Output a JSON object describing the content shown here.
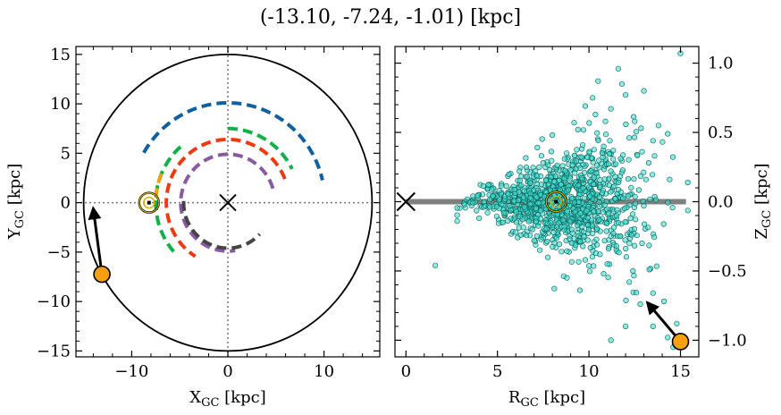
{
  "title": "(-13.10, -7.24, -1.01) [kpc]",
  "chart_data": [
    {
      "type": "line",
      "name": "galactic-plane-view",
      "xlabel": "X",
      "xlabel_sub": "GC",
      "xlabel_unit": " [kpc]",
      "ylabel": "Y",
      "ylabel_sub": "GC",
      "ylabel_unit": " [kpc]",
      "xlim": [
        -15.8,
        15.8
      ],
      "ylim": [
        -15.6,
        15.8
      ],
      "xticks": [
        -10,
        0,
        10
      ],
      "xtick_labels": [
        "−10",
        "0",
        "10"
      ],
      "yticks": [
        -15,
        -10,
        -5,
        0,
        5,
        10,
        15
      ],
      "ytick_labels": [
        "−15",
        "−10",
        "−5",
        "0",
        "5",
        "10",
        "15"
      ],
      "boundary_circle_radius": 15,
      "galactic_center": [
        0,
        0
      ],
      "sun_position": [
        -8.2,
        0
      ],
      "arms": [
        {
          "color": "#1060a0",
          "radius": 10.1,
          "theta_start_deg": 150,
          "theta_end_deg": 13
        },
        {
          "color": "#12b04a",
          "radius": 7.5,
          "theta_start_deg": 90,
          "theta_end_deg": 27
        },
        {
          "color": "#12b04a",
          "radius": 7.5,
          "theta_start_deg": 131,
          "theta_end_deg": 222
        },
        {
          "color": "#f0a010",
          "radius": 7.5,
          "theta_start_deg": 157,
          "theta_end_deg": 176
        },
        {
          "color": "#ee3a10",
          "radius": 6.4,
          "theta_start_deg": 22,
          "theta_end_deg": 238
        },
        {
          "color": "#8a5aa0",
          "radius": 4.9,
          "theta_start_deg": 17,
          "theta_end_deg": 279
        },
        {
          "color": "#444444",
          "radius": 4.6,
          "theta_start_deg": 178,
          "theta_end_deg": 316
        }
      ],
      "object_position": [
        -13.1,
        -7.24
      ],
      "velocity_arrow_tip": [
        -14.0,
        -0.6
      ]
    },
    {
      "type": "scatter",
      "name": "vertical-profile-view",
      "xlabel": "R",
      "xlabel_sub": "GC",
      "xlabel_unit": " [kpc]",
      "ylabel": "Z",
      "ylabel_sub": "GC",
      "ylabel_unit": " [kpc]",
      "xlim": [
        -0.6,
        16.0
      ],
      "ylim": [
        -1.12,
        1.12
      ],
      "xticks": [
        0,
        5,
        10,
        15
      ],
      "xtick_labels": [
        "0",
        "5",
        "10",
        "15"
      ],
      "yticks": [
        -1.0,
        -0.5,
        0.0,
        0.5,
        1.0
      ],
      "ytick_labels": [
        "−1.0",
        "−0.5",
        "0.0",
        "0.5",
        "1.0"
      ],
      "disk_plane": {
        "z": 0.0,
        "x_range": [
          0,
          15.3
        ]
      },
      "galactic_center": [
        0,
        0
      ],
      "sun_position": [
        8.2,
        0
      ],
      "scatter_color": "#40e0d0",
      "scatter_points": [
        [
          15.0,
          1.07
        ],
        [
          11.6,
          0.96
        ],
        [
          12.0,
          0.77
        ],
        [
          13.0,
          0.8
        ],
        [
          10.5,
          0.87
        ],
        [
          11.8,
          0.85
        ],
        [
          9.8,
          0.69
        ],
        [
          11.2,
          0.67
        ],
        [
          12.5,
          0.58
        ],
        [
          13.8,
          0.55
        ],
        [
          14.3,
          0.49
        ],
        [
          13.5,
          0.44
        ],
        [
          10.2,
          0.75
        ],
        [
          8.0,
          0.48
        ],
        [
          9.4,
          0.52
        ],
        [
          10.9,
          0.58
        ],
        [
          12.9,
          0.36
        ],
        [
          12.2,
          0.46
        ],
        [
          7.5,
          0.28
        ],
        [
          6.2,
          0.22
        ],
        [
          5.1,
          0.08
        ],
        [
          4.5,
          0.12
        ],
        [
          3.9,
          0.04
        ],
        [
          3.2,
          -0.02
        ],
        [
          4.0,
          -0.12
        ],
        [
          5.3,
          -0.15
        ],
        [
          6.0,
          -0.22
        ],
        [
          7.0,
          -0.28
        ],
        [
          8.5,
          -0.36
        ],
        [
          9.8,
          -0.42
        ],
        [
          10.8,
          -0.52
        ],
        [
          12.2,
          -0.58
        ],
        [
          13.3,
          -0.49
        ],
        [
          11.5,
          -0.32
        ],
        [
          12.8,
          -0.74
        ],
        [
          13.5,
          -0.66
        ],
        [
          11.0,
          -0.45
        ],
        [
          12.0,
          -0.9
        ],
        [
          13.5,
          -0.9
        ],
        [
          14.3,
          -0.98
        ],
        [
          11.2,
          -1.0
        ],
        [
          14.6,
          -1.05
        ],
        [
          1.6,
          -0.46
        ],
        [
          8.8,
          -0.55
        ],
        [
          9.5,
          -0.64
        ],
        [
          10.6,
          -0.38
        ],
        [
          11.7,
          -0.25
        ],
        [
          12.9,
          -0.3
        ],
        [
          14.1,
          -0.72
        ],
        [
          14.8,
          -0.88
        ]
      ],
      "object_position": [
        15.0,
        -1.01
      ],
      "velocity_arrow_tip": [
        13.2,
        -0.73
      ]
    }
  ]
}
